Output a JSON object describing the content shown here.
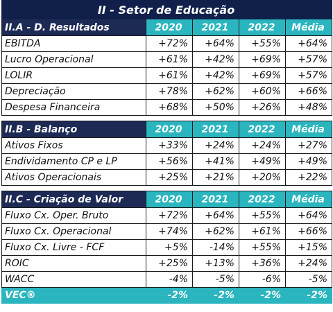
{
  "title": "II - Setor de Educação",
  "sections": [
    {
      "header": "II.A - D. Resultados",
      "cols": [
        "2020",
        "2021",
        "2022",
        "Média"
      ],
      "rows": [
        {
          "label": "EBITDA",
          "values": [
            "+72%",
            "+64%",
            "+55%",
            "+64%"
          ]
        },
        {
          "label": "Lucro Operacional",
          "values": [
            "+61%",
            "+42%",
            "+69%",
            "+57%"
          ]
        },
        {
          "label": "LOLIR",
          "values": [
            "+61%",
            "+42%",
            "+69%",
            "+57%"
          ]
        },
        {
          "label": "Depreciação",
          "values": [
            "+78%",
            "+62%",
            "+60%",
            "+66%"
          ]
        },
        {
          "label": "Despesa Financeira",
          "values": [
            "+68%",
            "+50%",
            "+26%",
            "+48%"
          ]
        }
      ]
    },
    {
      "header": "II.B - Balanço",
      "cols": [
        "2020",
        "2021",
        "2022",
        "Média"
      ],
      "rows": [
        {
          "label": "Ativos Fixos",
          "values": [
            "+33%",
            "+24%",
            "+24%",
            "+27%"
          ]
        },
        {
          "label": "Endividamento CP e LP",
          "values": [
            "+56%",
            "+41%",
            "+49%",
            "+49%"
          ]
        },
        {
          "label": "Ativos Operacionais",
          "values": [
            "+25%",
            "+21%",
            "+20%",
            "+22%"
          ]
        }
      ]
    },
    {
      "header": "II.C - Criação de Valor",
      "cols": [
        "2020",
        "2021",
        "2022",
        "Média"
      ],
      "rows": [
        {
          "label": "Fluxo Cx. Oper. Bruto",
          "values": [
            "+72%",
            "+64%",
            "+55%",
            "+64%"
          ]
        },
        {
          "label": "Fluxo Cx. Operacional",
          "values": [
            "+74%",
            "+62%",
            "+61%",
            "+66%"
          ]
        },
        {
          "label": "Fluxo Cx. Livre - FCF",
          "values": [
            "+5%",
            "-14%",
            "+55%",
            "+15%"
          ]
        },
        {
          "label": "ROIC",
          "values": [
            "+25%",
            "+13%",
            "+36%",
            "+24%"
          ]
        },
        {
          "label": "WACC",
          "values": [
            "-4%",
            "-5%",
            "-6%",
            "-5%"
          ]
        }
      ]
    }
  ],
  "vec": {
    "label": "VEC®",
    "values": [
      "-2%",
      "-2%",
      "-2%",
      "-2%"
    ]
  },
  "colors": {
    "navy": "#10204a",
    "teal": "#2ab5bf",
    "dark_header": "#1d2a55"
  }
}
